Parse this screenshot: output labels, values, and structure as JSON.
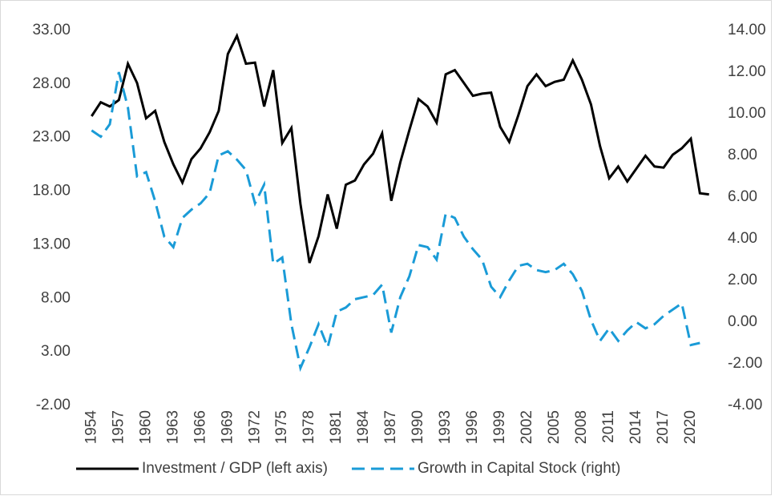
{
  "chart_data": {
    "type": "line",
    "x": [
      1954,
      1955,
      1956,
      1957,
      1958,
      1959,
      1960,
      1961,
      1962,
      1963,
      1964,
      1965,
      1966,
      1967,
      1968,
      1969,
      1970,
      1971,
      1972,
      1973,
      1974,
      1975,
      1976,
      1977,
      1978,
      1979,
      1980,
      1981,
      1982,
      1983,
      1984,
      1985,
      1986,
      1987,
      1988,
      1989,
      1990,
      1991,
      1992,
      1993,
      1994,
      1995,
      1996,
      1997,
      1998,
      1999,
      2000,
      2001,
      2002,
      2003,
      2004,
      2005,
      2006,
      2007,
      2008,
      2009,
      2010,
      2011,
      2012,
      2013,
      2014,
      2015,
      2016,
      2017,
      2018,
      2019,
      2020,
      2021,
      2022
    ],
    "series": [
      {
        "name": "Investment / GDP (left axis)",
        "color": "#000000",
        "dash": false,
        "values": [
          25.0,
          26.3,
          25.9,
          26.5,
          29.9,
          28.1,
          24.8,
          25.5,
          22.6,
          20.5,
          18.8,
          21.0,
          22.0,
          23.5,
          25.5,
          30.8,
          32.5,
          29.9,
          30.0,
          25.9,
          29.3,
          22.5,
          23.9,
          16.8,
          11.3,
          13.8,
          17.7,
          14.5,
          18.6,
          19.0,
          20.5,
          21.5,
          23.4,
          17.1,
          20.7,
          23.7,
          26.6,
          25.9,
          24.4,
          28.9,
          29.3,
          28.1,
          26.9,
          27.1,
          27.2,
          24.0,
          22.6,
          25.1,
          27.8,
          28.9,
          27.8,
          28.2,
          28.4,
          30.2,
          28.4,
          26.1,
          22.2,
          19.2,
          20.3,
          18.9,
          20.1,
          21.3,
          20.3,
          20.2,
          21.4,
          22.0,
          22.9,
          17.8,
          17.7
        ]
      },
      {
        "name": "Growth in Capital Stock (right)",
        "color": "#1a9bd7",
        "dash": true,
        "axis": "y2",
        "values": [
          9.2,
          8.9,
          9.5,
          12.0,
          10.3,
          7.0,
          7.2,
          5.8,
          4.1,
          3.6,
          5.0,
          5.4,
          5.7,
          6.2,
          8.0,
          8.2,
          7.8,
          7.3,
          5.7,
          6.6,
          2.8,
          3.1,
          -0.1,
          -2.2,
          -1.2,
          -0.1,
          -1.2,
          0.5,
          0.7,
          1.1,
          1.2,
          1.3,
          1.8,
          -0.5,
          1.2,
          2.2,
          3.7,
          3.6,
          3.0,
          5.2,
          5.0,
          4.1,
          3.5,
          3.0,
          1.7,
          1.2,
          2.0,
          2.7,
          2.8,
          2.5,
          2.4,
          2.5,
          2.8,
          2.3,
          1.5,
          0.1,
          -0.9,
          -0.3,
          -0.9,
          -0.4,
          0.0,
          -0.3,
          -0.1,
          0.3,
          0.6,
          0.9,
          -1.1,
          -1.0,
          null
        ]
      }
    ],
    "xlim": [
      1953,
      2023
    ],
    "xticks": [
      1954,
      1957,
      1960,
      1963,
      1966,
      1969,
      1972,
      1975,
      1978,
      1981,
      1984,
      1987,
      1990,
      1993,
      1996,
      1999,
      2002,
      2005,
      2008,
      2011,
      2014,
      2017,
      2020
    ],
    "ylim": [
      -2,
      33
    ],
    "yticks": [
      {
        "value": -2,
        "label": "-2.00"
      },
      {
        "value": 3,
        "label": "3.00"
      },
      {
        "value": 8,
        "label": "8.00"
      },
      {
        "value": 13,
        "label": "13.00"
      },
      {
        "value": 18,
        "label": "18.00"
      },
      {
        "value": 23,
        "label": "23.00"
      },
      {
        "value": 28,
        "label": "28.00"
      },
      {
        "value": 33,
        "label": "33.00"
      }
    ],
    "y2lim": [
      -4,
      14
    ],
    "y2ticks": [
      {
        "value": -4,
        "label": "-4.00"
      },
      {
        "value": -2,
        "label": "-2.00"
      },
      {
        "value": 0,
        "label": "0.00"
      },
      {
        "value": 2,
        "label": "2.00"
      },
      {
        "value": 4,
        "label": "4.00"
      },
      {
        "value": 6,
        "label": "6.00"
      },
      {
        "value": 8,
        "label": "8.00"
      },
      {
        "value": 10,
        "label": "10.00"
      },
      {
        "value": 12,
        "label": "12.00"
      },
      {
        "value": 14,
        "label": "14.00"
      }
    ],
    "legend": "bottom"
  }
}
